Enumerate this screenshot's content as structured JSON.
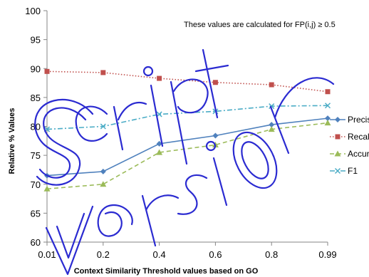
{
  "chart_data": {
    "type": "line",
    "title": "",
    "annotation": "These values are calculated for FP(i,j) ≥ 0.5",
    "xlabel": "Context Similarity Threshold values based on GO",
    "ylabel": "Relative % Values",
    "categories": [
      "0.01",
      "0.2",
      "0.4",
      "0.6",
      "0.8",
      "0.99"
    ],
    "ylim": [
      60,
      100
    ],
    "yticks": [
      60,
      65,
      70,
      75,
      80,
      85,
      90,
      95,
      100
    ],
    "grid": false,
    "legend_position": "right",
    "series": [
      {
        "name": "Precision",
        "color": "#4F81BD",
        "dash": "solid",
        "marker": "diamond",
        "values": [
          71.5,
          72.2,
          77.0,
          78.4,
          80.3,
          81.4
        ]
      },
      {
        "name": "Recall",
        "color": "#C0504D",
        "dash": "dotted",
        "marker": "square",
        "values": [
          89.5,
          89.3,
          88.3,
          87.6,
          87.2,
          86.0
        ]
      },
      {
        "name": "Accuracy",
        "color": "#9BBB59",
        "dash": "dashed",
        "marker": "triangle",
        "values": [
          69.2,
          70.0,
          75.5,
          76.8,
          79.5,
          80.6
        ]
      },
      {
        "name": "F1",
        "color": "#4BACC6",
        "dash": "dashdot",
        "marker": "x",
        "values": [
          79.5,
          80.0,
          82.1,
          82.6,
          83.5,
          83.6
        ]
      }
    ],
    "watermark": "Script Version",
    "watermark_color": "#2b2bd1"
  }
}
